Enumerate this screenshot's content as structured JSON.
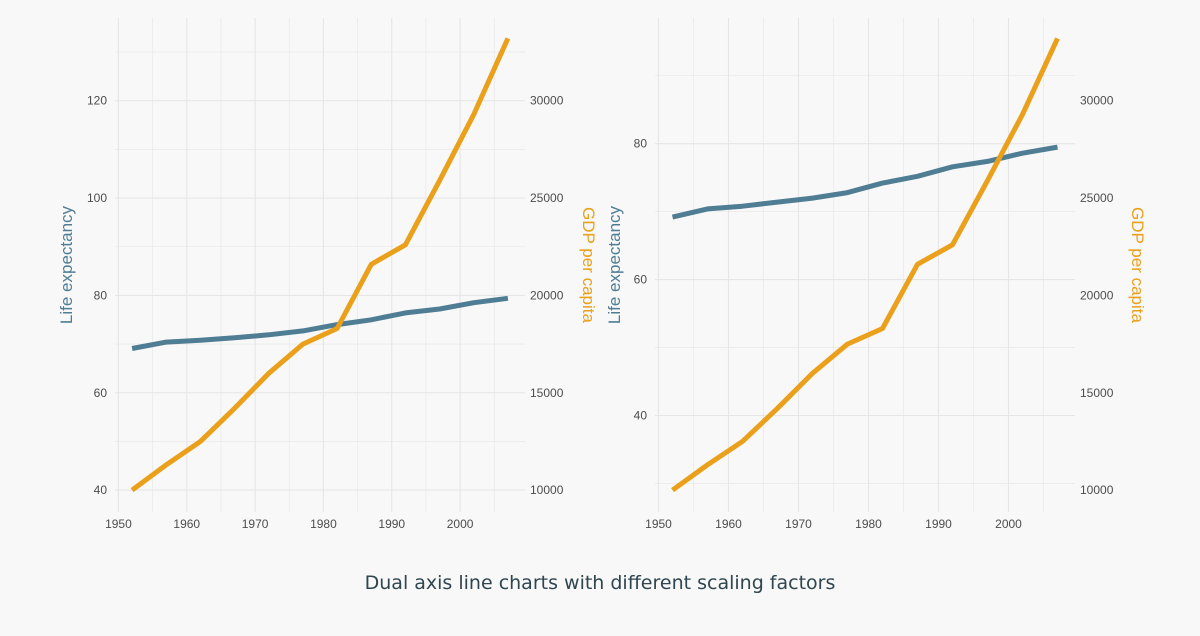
{
  "caption": "Dual axis line charts with different scaling factors",
  "colors": {
    "life": "#4f7d94",
    "gdp": "#eba01c",
    "grid": "#e6e6e6",
    "tick_text": "#4d4d4d"
  },
  "chart_data": [
    {
      "type": "line",
      "title": "",
      "xlabel": "",
      "ylabel": "Life expectancy",
      "y2label": "GDP per capita",
      "dual_axis": true,
      "grid": true,
      "x_ticks": [
        1950,
        1960,
        1970,
        1980,
        1990,
        2000
      ],
      "y_ticks": [
        40,
        60,
        80,
        100,
        120
      ],
      "y2_ticks": [
        10000,
        15000,
        20000,
        25000,
        30000
      ],
      "xlim": [
        1949.5,
        2009.5
      ],
      "ylim": [
        35.5,
        137
      ],
      "y2lim": [
        8875,
        34250
      ],
      "x": [
        1952,
        1957,
        1962,
        1967,
        1972,
        1977,
        1982,
        1987,
        1992,
        1997,
        2002,
        2007
      ],
      "series": [
        {
          "name": "Life expectancy",
          "axis": "left",
          "values": [
            69.1,
            70.4,
            70.8,
            71.3,
            71.9,
            72.7,
            74.0,
            75.0,
            76.4,
            77.2,
            78.5,
            79.4
          ]
        },
        {
          "name": "GDP per capita",
          "axis": "right",
          "values": [
            10000,
            11300,
            12500,
            14200,
            16000,
            17500,
            18300,
            21600,
            22600,
            25900,
            29300,
            33200
          ]
        }
      ]
    },
    {
      "type": "line",
      "title": "",
      "xlabel": "",
      "ylabel": "Life expectancy",
      "y2label": "GDP per capita",
      "dual_axis": true,
      "grid": true,
      "x_ticks": [
        1950,
        1960,
        1970,
        1980,
        1990,
        2000
      ],
      "y_ticks": [
        40,
        60,
        80
      ],
      "y2_ticks": [
        10000,
        15000,
        20000,
        25000,
        30000
      ],
      "xlim": [
        1949.5,
        2009.5
      ],
      "ylim": [
        25.8,
        98.5
      ],
      "y2lim": [
        8875,
        34250
      ],
      "x": [
        1952,
        1957,
        1962,
        1967,
        1972,
        1977,
        1982,
        1987,
        1992,
        1997,
        2002,
        2007
      ],
      "series": [
        {
          "name": "Life expectancy",
          "axis": "left",
          "values": [
            69.2,
            70.4,
            70.8,
            71.4,
            72.0,
            72.8,
            74.2,
            75.2,
            76.6,
            77.4,
            78.6,
            79.5
          ]
        },
        {
          "name": "GDP per capita",
          "axis": "right",
          "values": [
            10000,
            11300,
            12500,
            14200,
            16000,
            17500,
            18300,
            21600,
            22600,
            25900,
            29300,
            33200
          ]
        }
      ]
    }
  ]
}
